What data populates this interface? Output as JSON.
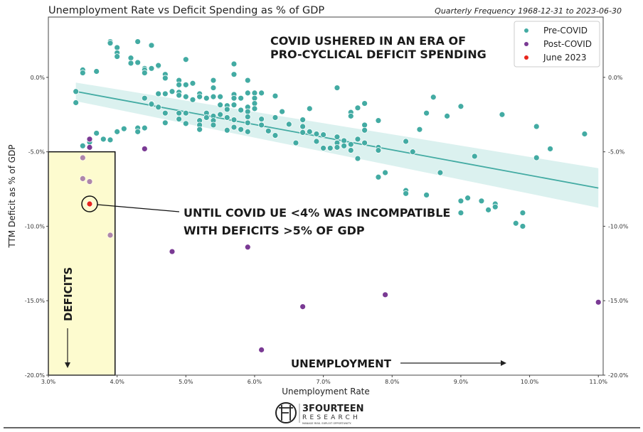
{
  "chart_data": {
    "type": "scatter",
    "title": "Unemployment Rate vs Deficit Spending as % of GDP",
    "subtitle": "Quarterly Frequency 1968-12-31 to 2023-06-30",
    "xlabel": "Unemployment Rate",
    "ylabel": "TTM Deficit as % of GDP",
    "xlim": [
      3.0,
      11.07
    ],
    "ylim": [
      -20.0,
      4.05
    ],
    "x_ticks": [
      3,
      4,
      5,
      6,
      7,
      8,
      9,
      10,
      11
    ],
    "x_tick_labels": [
      "3.0%",
      "4.0%",
      "5.0%",
      "6.0%",
      "7.0%",
      "8.0%",
      "9.0%",
      "10.0%",
      "11.0%"
    ],
    "y_ticks": [
      0,
      -5,
      -10,
      -15,
      -20
    ],
    "y_tick_labels": [
      "0.0%",
      "-5.0%",
      "-10.0%",
      "-15.0%",
      "-20.0%"
    ],
    "legend_position": "top-right",
    "colors": {
      "pre": "#43aba3",
      "post": "#7a3a94",
      "june": "#e8261c",
      "band": "#d5eeec",
      "box": "#fdfbcf"
    },
    "series": [
      {
        "name": "Pre-COVID",
        "points": [
          [
            3.4,
            -0.95
          ],
          [
            3.4,
            -1.7
          ],
          [
            3.5,
            0.5
          ],
          [
            3.5,
            0.3
          ],
          [
            3.7,
            0.4
          ],
          [
            3.9,
            2.4
          ],
          [
            3.9,
            2.3
          ],
          [
            4.0,
            2.0
          ],
          [
            4.0,
            1.65
          ],
          [
            4.0,
            1.4
          ],
          [
            4.2,
            1.3
          ],
          [
            4.2,
            0.95
          ],
          [
            4.3,
            2.4
          ],
          [
            4.3,
            1.0
          ],
          [
            4.5,
            2.15
          ],
          [
            4.4,
            0.6
          ],
          [
            4.5,
            0.6
          ],
          [
            4.6,
            0.75
          ],
          [
            5.0,
            1.2
          ],
          [
            4.5,
            -1.75
          ],
          [
            3.5,
            -4.6
          ],
          [
            3.7,
            -3.75
          ],
          [
            3.8,
            -4.15
          ],
          [
            3.9,
            -4.2
          ],
          [
            4.0,
            -3.65
          ],
          [
            4.1,
            -3.45
          ],
          [
            4.3,
            -3.4
          ],
          [
            4.3,
            -3.65
          ],
          [
            4.4,
            -3.4
          ],
          [
            3.6,
            -4.35
          ],
          [
            4.4,
            0.5
          ],
          [
            4.4,
            0.3
          ],
          [
            4.5,
            0.6
          ],
          [
            4.6,
            0.8
          ],
          [
            4.7,
            0.2
          ],
          [
            4.7,
            -0.05
          ],
          [
            4.9,
            -0.2
          ],
          [
            4.9,
            -0.5
          ],
          [
            5.0,
            -0.5
          ],
          [
            5.1,
            -0.4
          ],
          [
            5.4,
            -0.2
          ],
          [
            5.4,
            -0.7
          ],
          [
            5.7,
            0.9
          ],
          [
            5.7,
            0.2
          ],
          [
            5.9,
            -0.2
          ],
          [
            4.6,
            -1.1
          ],
          [
            4.7,
            -1.1
          ],
          [
            4.8,
            -0.95
          ],
          [
            4.9,
            -1.0
          ],
          [
            4.9,
            -1.2
          ],
          [
            5.0,
            -1.3
          ],
          [
            5.1,
            -1.5
          ],
          [
            5.2,
            -1.1
          ],
          [
            5.2,
            -1.3
          ],
          [
            5.3,
            -1.4
          ],
          [
            5.4,
            -1.3
          ],
          [
            5.5,
            -1.3
          ],
          [
            5.7,
            -1.15
          ],
          [
            5.7,
            -1.4
          ],
          [
            5.7,
            -1.85
          ],
          [
            5.8,
            -1.4
          ],
          [
            5.9,
            -1.05
          ],
          [
            6.0,
            -1.05
          ],
          [
            6.0,
            -1.4
          ],
          [
            6.0,
            -1.75
          ],
          [
            6.0,
            -2.1
          ],
          [
            6.1,
            -1.05
          ],
          [
            6.3,
            -1.25
          ],
          [
            7.2,
            -0.7
          ],
          [
            4.4,
            -1.4
          ],
          [
            4.5,
            -1.8
          ],
          [
            4.6,
            -2.0
          ],
          [
            4.7,
            -2.4
          ],
          [
            4.7,
            -3.05
          ],
          [
            4.4,
            -3.4
          ],
          [
            4.9,
            -2.4
          ],
          [
            4.9,
            -2.8
          ],
          [
            5.0,
            -2.4
          ],
          [
            5.0,
            -3.1
          ],
          [
            5.2,
            -2.9
          ],
          [
            5.2,
            -3.2
          ],
          [
            5.2,
            -3.5
          ],
          [
            5.3,
            -2.4
          ],
          [
            5.3,
            -2.7
          ],
          [
            5.4,
            -2.6
          ],
          [
            5.4,
            -2.9
          ],
          [
            5.4,
            -3.2
          ],
          [
            5.5,
            -1.85
          ],
          [
            5.5,
            -2.5
          ],
          [
            5.6,
            -1.9
          ],
          [
            5.6,
            -2.15
          ],
          [
            5.6,
            -2.7
          ],
          [
            5.6,
            -3.55
          ],
          [
            5.7,
            -2.85
          ],
          [
            5.7,
            -3.35
          ],
          [
            5.8,
            -2.2
          ],
          [
            5.8,
            -3.5
          ],
          [
            5.9,
            -2.0
          ],
          [
            5.9,
            -2.3
          ],
          [
            5.9,
            -2.65
          ],
          [
            5.9,
            -3.05
          ],
          [
            5.9,
            -3.65
          ],
          [
            6.1,
            -2.8
          ],
          [
            6.1,
            -3.2
          ],
          [
            6.2,
            -3.6
          ],
          [
            6.3,
            -2.7
          ],
          [
            6.3,
            -3.9
          ],
          [
            6.4,
            -2.3
          ],
          [
            6.5,
            -3.15
          ],
          [
            6.6,
            -4.4
          ],
          [
            6.7,
            -2.85
          ],
          [
            6.7,
            -3.3
          ],
          [
            6.7,
            -3.7
          ],
          [
            6.8,
            -2.1
          ],
          [
            6.8,
            -3.65
          ],
          [
            6.9,
            -3.8
          ],
          [
            6.9,
            -4.3
          ],
          [
            7.0,
            -3.85
          ],
          [
            7.0,
            -4.75
          ],
          [
            7.1,
            -4.75
          ],
          [
            7.2,
            -4.0
          ],
          [
            7.2,
            -4.4
          ],
          [
            7.2,
            -4.7
          ],
          [
            7.3,
            -4.25
          ],
          [
            7.3,
            -4.6
          ],
          [
            7.4,
            -2.35
          ],
          [
            7.4,
            -2.6
          ],
          [
            7.4,
            -4.5
          ],
          [
            7.4,
            -4.9
          ],
          [
            7.5,
            -2.05
          ],
          [
            7.5,
            -4.15
          ],
          [
            7.5,
            -5.45
          ],
          [
            7.6,
            -1.75
          ],
          [
            7.6,
            -3.2
          ],
          [
            7.6,
            -3.55
          ],
          [
            7.6,
            -4.4
          ],
          [
            7.8,
            -2.9
          ],
          [
            7.8,
            -4.7
          ],
          [
            7.8,
            -4.9
          ],
          [
            7.8,
            -6.7
          ],
          [
            7.9,
            -6.4
          ],
          [
            8.2,
            -4.3
          ],
          [
            8.2,
            -7.6
          ],
          [
            8.2,
            -7.8
          ],
          [
            8.3,
            -5.0
          ],
          [
            8.4,
            -3.5
          ],
          [
            8.5,
            -2.4
          ],
          [
            8.5,
            -7.9
          ],
          [
            8.6,
            -1.33
          ],
          [
            8.7,
            -6.4
          ],
          [
            8.8,
            -2.6
          ],
          [
            9.0,
            -1.95
          ],
          [
            9.0,
            -8.3
          ],
          [
            9.0,
            -9.1
          ],
          [
            9.1,
            -8.1
          ],
          [
            9.2,
            -5.3
          ],
          [
            9.3,
            -8.3
          ],
          [
            9.4,
            -8.9
          ],
          [
            9.5,
            -8.5
          ],
          [
            9.5,
            -8.7
          ],
          [
            9.6,
            -2.5
          ],
          [
            9.8,
            -9.8
          ],
          [
            9.9,
            -9.1
          ],
          [
            9.9,
            -10.0
          ],
          [
            10.1,
            -3.3
          ],
          [
            10.1,
            -5.4
          ],
          [
            10.3,
            -4.8
          ],
          [
            10.8,
            -3.8
          ]
        ]
      },
      {
        "name": "Post-COVID",
        "points": [
          [
            3.6,
            -4.15
          ],
          [
            3.6,
            -4.7
          ],
          [
            4.4,
            -4.8
          ],
          [
            3.5,
            -5.4
          ],
          [
            3.5,
            -6.8
          ],
          [
            3.6,
            -7.0
          ],
          [
            3.9,
            -10.6
          ],
          [
            4.8,
            -11.7
          ],
          [
            5.9,
            -11.4
          ],
          [
            6.7,
            -15.4
          ],
          [
            7.9,
            -14.6
          ],
          [
            6.1,
            -18.3
          ],
          [
            11.0,
            -15.1
          ]
        ]
      },
      {
        "name": "June 2023",
        "points": [
          [
            3.6,
            -8.5
          ]
        ]
      }
    ],
    "regression": {
      "x": [
        3.4,
        11.0
      ],
      "y": [
        -0.95,
        -7.43
      ],
      "ci_upper": [
        -0.35,
        -6.1
      ],
      "ci_lower": [
        -1.6,
        -8.75
      ]
    },
    "highlight_box": {
      "x": [
        3.0,
        3.97
      ],
      "y": [
        -20.0,
        -5.0
      ]
    },
    "annotations": {
      "covid": [
        "COVID USHERED IN AN ERA OF",
        "PRO-CYCLICAL DEFICIT SPENDING"
      ],
      "until": [
        "UNTIL COVID UE <4% WAS INCOMPATIBLE",
        "WITH DEFICITS >5% OF GDP"
      ],
      "deficits": "DEFICITS",
      "unemployment": "UNEMPLOYMENT"
    }
  },
  "logo": {
    "name": "3FOURTEEN",
    "sub": "RESEARCH",
    "tagline": "MANAGE RISK. EXPLOIT OPPORTUNITY."
  }
}
